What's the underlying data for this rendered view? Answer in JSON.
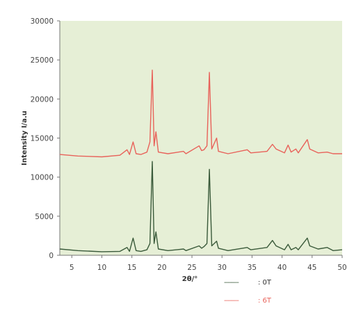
{
  "chart_data": {
    "type": "line",
    "title": "",
    "xlabel": "2θ/°",
    "ylabel": "Intensity I/a.u",
    "xlim": [
      3,
      50
    ],
    "ylim": [
      0,
      30000
    ],
    "x_ticks": [
      5,
      10,
      15,
      20,
      25,
      30,
      35,
      40,
      45,
      50
    ],
    "y_ticks": [
      0,
      5000,
      10000,
      15000,
      20000,
      25000,
      30000
    ],
    "grid": false,
    "legend_position": "bottom-center",
    "colors": {
      "plot_background": "#e6efd6",
      "series_0T": "#3a5a3a",
      "series_6T": "#e8625a"
    },
    "series": [
      {
        "name": "0T",
        "style": "dashed",
        "points": [
          [
            3,
            800
          ],
          [
            6,
            600
          ],
          [
            10,
            450
          ],
          [
            13,
            500
          ],
          [
            14.2,
            1000
          ],
          [
            14.6,
            500
          ],
          [
            15.2,
            2200
          ],
          [
            15.7,
            600
          ],
          [
            16.5,
            500
          ],
          [
            17.5,
            700
          ],
          [
            18.0,
            1500
          ],
          [
            18.4,
            12000
          ],
          [
            18.7,
            1500
          ],
          [
            19.0,
            3000
          ],
          [
            19.4,
            800
          ],
          [
            21,
            600
          ],
          [
            23.6,
            800
          ],
          [
            24,
            600
          ],
          [
            26.2,
            1200
          ],
          [
            26.6,
            900
          ],
          [
            27,
            1100
          ],
          [
            27.5,
            1500
          ],
          [
            27.9,
            11000
          ],
          [
            28.3,
            1200
          ],
          [
            29.1,
            1800
          ],
          [
            29.4,
            900
          ],
          [
            31,
            600
          ],
          [
            34.2,
            1000
          ],
          [
            34.8,
            700
          ],
          [
            37.5,
            1000
          ],
          [
            38.4,
            1900
          ],
          [
            39,
            1200
          ],
          [
            40.4,
            700
          ],
          [
            41,
            1400
          ],
          [
            41.5,
            700
          ],
          [
            42.3,
            1000
          ],
          [
            42.7,
            700
          ],
          [
            44.2,
            2200
          ],
          [
            44.6,
            1200
          ],
          [
            46,
            800
          ],
          [
            47.5,
            1000
          ],
          [
            48.5,
            600
          ],
          [
            50,
            700
          ]
        ]
      },
      {
        "name": "6T",
        "style": "dashed",
        "points": [
          [
            3,
            12900
          ],
          [
            6,
            12700
          ],
          [
            10,
            12600
          ],
          [
            13,
            12800
          ],
          [
            14.2,
            13500
          ],
          [
            14.6,
            12900
          ],
          [
            15.2,
            14500
          ],
          [
            15.7,
            13000
          ],
          [
            16.5,
            12900
          ],
          [
            17.5,
            13200
          ],
          [
            18.0,
            14500
          ],
          [
            18.4,
            23700
          ],
          [
            18.7,
            14000
          ],
          [
            19.0,
            15800
          ],
          [
            19.4,
            13200
          ],
          [
            21,
            13000
          ],
          [
            23.6,
            13300
          ],
          [
            24,
            13000
          ],
          [
            26.2,
            14000
          ],
          [
            26.6,
            13400
          ],
          [
            27,
            13500
          ],
          [
            27.5,
            14000
          ],
          [
            27.9,
            23400
          ],
          [
            28.3,
            13600
          ],
          [
            29.1,
            15000
          ],
          [
            29.4,
            13300
          ],
          [
            31,
            13000
          ],
          [
            34.2,
            13500
          ],
          [
            34.8,
            13100
          ],
          [
            37.5,
            13300
          ],
          [
            38.4,
            14200
          ],
          [
            39,
            13600
          ],
          [
            40.4,
            13100
          ],
          [
            41,
            14100
          ],
          [
            41.5,
            13200
          ],
          [
            42.3,
            13600
          ],
          [
            42.7,
            13100
          ],
          [
            44.2,
            14800
          ],
          [
            44.6,
            13600
          ],
          [
            46,
            13100
          ],
          [
            47.5,
            13200
          ],
          [
            48.5,
            13000
          ],
          [
            50,
            13000
          ]
        ]
      }
    ],
    "legend": [
      {
        "line": "--------",
        "label": ": 0T",
        "series": "0T"
      },
      {
        "line": "--------",
        "label": ": 6T",
        "series": "6T"
      }
    ]
  }
}
